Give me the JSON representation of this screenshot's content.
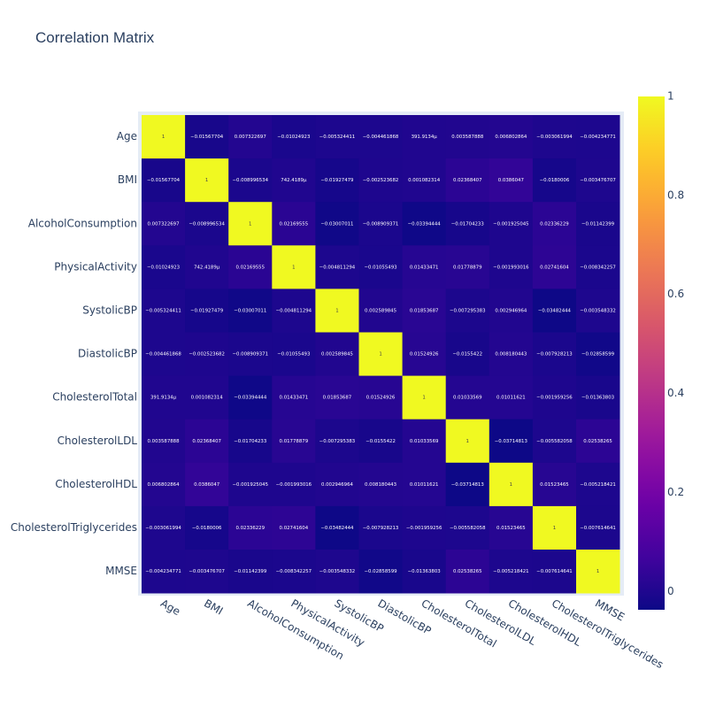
{
  "chart_data": {
    "type": "heatmap",
    "title": "Correlation Matrix",
    "categories": [
      "Age",
      "BMI",
      "AlcoholConsumption",
      "PhysicalActivity",
      "SystolicBP",
      "DiastolicBP",
      "CholesterolTotal",
      "CholesterolLDL",
      "CholesterolHDL",
      "CholesterolTriglycerides",
      "MMSE"
    ],
    "values": [
      [
        1,
        -0.01567704,
        0.007322697,
        -0.01024923,
        -0.005324411,
        -0.004461868,
        0.0003919134,
        0.003587888,
        0.006802864,
        -0.003061994,
        -0.004234771
      ],
      [
        -0.01567704,
        1,
        -0.008996534,
        0.0007424189,
        -0.01927479,
        -0.002523682,
        0.001082314,
        0.02368407,
        0.0386047,
        -0.0180006,
        -0.003476707
      ],
      [
        0.007322697,
        -0.008996534,
        1,
        0.02169555,
        -0.03007011,
        -0.008909371,
        -0.03394444,
        -0.01704233,
        -0.001925045,
        0.02336229,
        -0.01142399
      ],
      [
        -0.01024923,
        0.0007424189,
        0.02169555,
        1,
        -0.004811294,
        -0.01055493,
        0.01433471,
        0.01778879,
        -0.001993016,
        0.02741604,
        -0.008342257
      ],
      [
        -0.005324411,
        -0.01927479,
        -0.03007011,
        -0.004811294,
        1,
        0.002589845,
        0.01853687,
        -0.007295383,
        0.002946964,
        -0.03482444,
        -0.003548332
      ],
      [
        -0.004461868,
        -0.002523682,
        -0.008909371,
        -0.01055493,
        0.002589845,
        1,
        0.01524926,
        -0.0155422,
        0.008180443,
        -0.007928213,
        -0.02858599
      ],
      [
        0.0003919134,
        0.001082314,
        -0.03394444,
        0.01433471,
        0.01853687,
        0.01524926,
        1,
        0.01033569,
        0.01011621,
        -0.001959256,
        -0.01363803
      ],
      [
        0.003587888,
        0.02368407,
        -0.01704233,
        0.01778879,
        -0.007295383,
        -0.0155422,
        0.01033569,
        1,
        -0.03714813,
        -0.005582058,
        0.02538265
      ],
      [
        0.006802864,
        0.0386047,
        -0.001925045,
        -0.001993016,
        0.002946964,
        0.008180443,
        0.01011621,
        -0.03714813,
        1,
        0.01523465,
        -0.005218421
      ],
      [
        -0.003061994,
        -0.0180006,
        0.02336229,
        0.02741604,
        -0.03482444,
        -0.007928213,
        -0.001959256,
        -0.005582058,
        0.01523465,
        1,
        -0.007614641
      ],
      [
        -0.004234771,
        -0.003476707,
        -0.01142399,
        -0.008342257,
        -0.003548332,
        -0.02858599,
        -0.01363803,
        0.02538265,
        -0.005218421,
        -0.007614641,
        1
      ]
    ],
    "cell_labels": [
      [
        "1",
        "−0.01567704",
        "0.007322697",
        "−0.01024923",
        "−0.005324411",
        "−0.004461868",
        "391.9134μ",
        "0.003587888",
        "0.006802864",
        "−0.003061994",
        "−0.004234771"
      ],
      [
        "−0.01567704",
        "1",
        "−0.008996534",
        "742.4189μ",
        "−0.01927479",
        "−0.002523682",
        "0.001082314",
        "0.02368407",
        "0.0386047",
        "−0.0180006",
        "−0.003476707"
      ],
      [
        "0.007322697",
        "−0.008996534",
        "1",
        "0.02169555",
        "−0.03007011",
        "−0.008909371",
        "−0.03394444",
        "−0.01704233",
        "−0.001925045",
        "0.02336229",
        "−0.01142399"
      ],
      [
        "−0.01024923",
        "742.4189μ",
        "0.02169555",
        "1",
        "−0.004811294",
        "−0.01055493",
        "0.01433471",
        "0.01778879",
        "−0.001993016",
        "0.02741604",
        "−0.008342257"
      ],
      [
        "−0.005324411",
        "−0.01927479",
        "−0.03007011",
        "−0.004811294",
        "1",
        "0.002589845",
        "0.01853687",
        "−0.007295383",
        "0.002946964",
        "−0.03482444",
        "−0.003548332"
      ],
      [
        "−0.004461868",
        "−0.002523682",
        "−0.008909371",
        "−0.01055493",
        "0.002589845",
        "1",
        "0.01524926",
        "−0.0155422",
        "0.008180443",
        "−0.007928213",
        "−0.02858599"
      ],
      [
        "391.9134μ",
        "0.001082314",
        "−0.03394444",
        "0.01433471",
        "0.01853687",
        "0.01524926",
        "1",
        "0.01033569",
        "0.01011621",
        "−0.001959256",
        "−0.01363803"
      ],
      [
        "0.003587888",
        "0.02368407",
        "−0.01704233",
        "0.01778879",
        "−0.007295383",
        "−0.0155422",
        "0.01033569",
        "1",
        "−0.03714813",
        "−0.005582058",
        "0.02538265"
      ],
      [
        "0.006802864",
        "0.0386047",
        "−0.001925045",
        "−0.001993016",
        "0.002946964",
        "0.008180443",
        "0.01011621",
        "−0.03714813",
        "1",
        "0.01523465",
        "−0.005218421"
      ],
      [
        "−0.003061994",
        "−0.0180006",
        "0.02336229",
        "0.02741604",
        "−0.03482444",
        "−0.007928213",
        "−0.001959256",
        "−0.005582058",
        "0.01523465",
        "1",
        "−0.007614641"
      ],
      [
        "−0.004234771",
        "−0.003476707",
        "−0.01142399",
        "−0.008342257",
        "−0.003548332",
        "−0.02858599",
        "−0.01363803",
        "0.02538265",
        "−0.005218421",
        "−0.007614641",
        "1"
      ]
    ],
    "colorscale": "plasma",
    "zmin": -0.0371,
    "zmax": 1,
    "colorbar_ticks": [
      0,
      0.2,
      0.4,
      0.6,
      0.8,
      1
    ],
    "colorbar_tick_labels": [
      "0",
      "0.2",
      "0.4",
      "0.6",
      "0.8",
      "1"
    ],
    "colors": {
      "plot_background": "#e5ecf6",
      "text_dark": "#2a3f5f",
      "cell_text_on_dark": "#ffffff",
      "cell_text_on_light": "#444444"
    }
  }
}
